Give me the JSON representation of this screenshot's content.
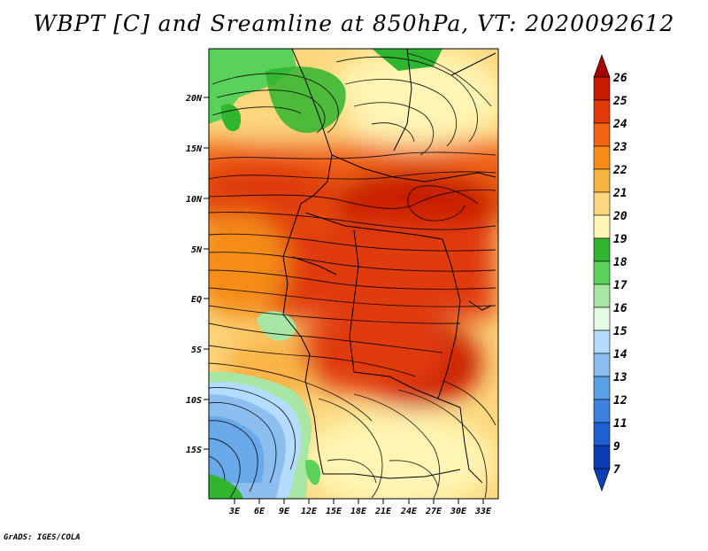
{
  "title": "WBPT [C] and Sreamline at 850hPa, VT: 2020092612",
  "credit": "GrADS: IGES/COLA",
  "latitude_labels": [
    "20N",
    "15N",
    "10N",
    "5N",
    "EQ",
    "5S",
    "10S",
    "15S"
  ],
  "longitude_labels": [
    "3E",
    "6E",
    "9E",
    "12E",
    "15E",
    "18E",
    "21E",
    "24E",
    "27E",
    "30E",
    "33E"
  ],
  "colorbar": {
    "levels": [
      "26",
      "25",
      "24",
      "23",
      "22",
      "21",
      "20",
      "19",
      "18",
      "17",
      "16",
      "15",
      "14",
      "13",
      "12",
      "11",
      "9",
      "7"
    ],
    "colors": [
      "#a50000",
      "#c81a00",
      "#e03a0a",
      "#f06414",
      "#f58c14",
      "#f9b446",
      "#fcd77d",
      "#fff5b4",
      "#2fb52f",
      "#5ad25a",
      "#a8e6a3",
      "#e1fae1",
      "#b4dcff",
      "#8cbef0",
      "#5aa0e6",
      "#3c82dc",
      "#1e5fd2",
      "#0a3cb4"
    ],
    "top_color": "#a50000",
    "bottom_color": "#0a3cb4"
  }
}
